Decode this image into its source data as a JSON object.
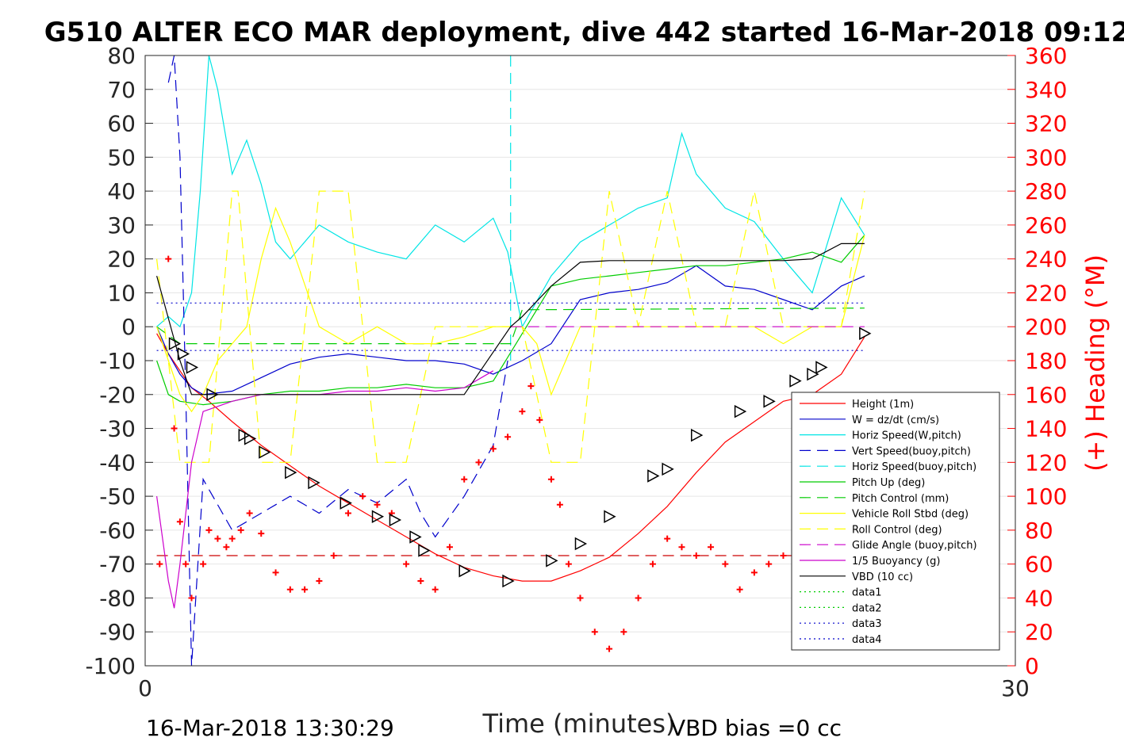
{
  "chart_data": {
    "type": "line",
    "title": "G510 ALTER ECO MAR deployment, dive 442 started 16-Mar-2018 09:12",
    "xlabel": "Time (minutes)",
    "ylabel_right": "(+) Heading (°M)",
    "xlim": [
      0,
      30
    ],
    "ylim": [
      -100,
      80
    ],
    "ylim_right": [
      0,
      360
    ],
    "x_ticks": [
      "0",
      "30"
    ],
    "y_ticks": [
      "80",
      "70",
      "60",
      "50",
      "40",
      "30",
      "20",
      "10",
      "0",
      "-10",
      "-20",
      "-30",
      "-40",
      "-50",
      "-60",
      "-70",
      "-80",
      "-90",
      "-100"
    ],
    "y_ticks_right": [
      "360",
      "340",
      "320",
      "300",
      "280",
      "260",
      "240",
      "220",
      "200",
      "180",
      "160",
      "140",
      "120",
      "100",
      "80",
      "60",
      "40",
      "20",
      "0"
    ],
    "grid": "horizontal",
    "legend_position": "bottom-right",
    "footer_left": "16-Mar-2018 13:30:29",
    "footer_right": "VBD bias =0 cc",
    "series": [
      {
        "name": "Height (1m)",
        "color": "#ff0000",
        "style": "solid",
        "x": [
          0.4,
          0.8,
          1.2,
          1.6,
          2.2,
          3,
          4,
          5,
          6,
          7,
          8,
          9,
          10,
          11,
          12,
          13,
          14,
          15,
          16,
          17,
          18,
          19,
          20,
          21,
          22,
          23,
          24,
          24.8
        ],
        "y": [
          -2,
          -8,
          -13,
          -18,
          -22,
          -28,
          -35,
          -41,
          -47,
          -52,
          -57,
          -62,
          -67,
          -71,
          -73.5,
          -75,
          -75,
          -72,
          -68,
          -61,
          -53,
          -43,
          -34,
          -28,
          -22,
          -20,
          -14,
          -3
        ]
      },
      {
        "name": "W = dz/dt (cm/s)",
        "color": "#0000cc",
        "style": "solid",
        "x": [
          0.4,
          0.8,
          1.2,
          1.6,
          2,
          3,
          4,
          5,
          6,
          7,
          8,
          9,
          10,
          11,
          12,
          13,
          14,
          15,
          16,
          17,
          18,
          19,
          20,
          21,
          22,
          23,
          24,
          24.8
        ],
        "y": [
          0,
          -8,
          -14,
          -18,
          -20,
          -19,
          -15,
          -11,
          -9,
          -8,
          -9,
          -10,
          -10,
          -11,
          -14,
          -10,
          -5,
          8,
          10,
          11,
          13,
          18,
          12,
          11,
          8,
          5,
          12,
          15
        ]
      },
      {
        "name": "Horiz Speed(W,pitch)",
        "color": "#00e5e5",
        "style": "solid",
        "x": [
          0.4,
          0.8,
          1.2,
          1.6,
          1.9,
          2.2,
          2.5,
          3,
          3.5,
          4,
          4.5,
          5,
          6,
          7,
          8,
          9,
          10,
          11,
          12,
          12.5,
          13,
          14,
          15,
          16,
          17,
          18,
          18.5,
          19,
          20,
          21,
          22,
          23,
          24,
          24.8
        ],
        "y": [
          0,
          3,
          0,
          10,
          40,
          80,
          70,
          45,
          55,
          42,
          25,
          20,
          30,
          25,
          22,
          20,
          30,
          25,
          32,
          22,
          0,
          15,
          25,
          30,
          35,
          38,
          57,
          45,
          35,
          31,
          20,
          10,
          38,
          27
        ]
      },
      {
        "name": "Vert Speed(buoy,pitch)",
        "color": "#0000cc",
        "style": "dashed",
        "x": [
          0.8,
          1,
          1.2,
          1.4,
          1.6,
          2,
          3,
          4,
          5,
          6,
          7,
          8,
          9,
          9.5,
          10,
          11,
          12,
          12.5
        ],
        "y": [
          72,
          80,
          50,
          -20,
          -100,
          -45,
          -60,
          -55,
          -50,
          -55,
          -48,
          -52,
          -45,
          -55,
          -62,
          -50,
          -35,
          -10
        ]
      },
      {
        "name": "Horiz Speed(buoy,pitch)",
        "color": "#00e5e5",
        "style": "dashed",
        "x": [
          12.6,
          12.6
        ],
        "y": [
          80,
          -10
        ]
      },
      {
        "name": "Pitch Up (deg)",
        "color": "#00cc00",
        "style": "solid",
        "x": [
          0.4,
          0.8,
          1.2,
          2,
          3,
          4,
          5,
          6,
          7,
          8,
          9,
          10,
          11,
          12,
          13,
          14,
          15,
          16,
          17,
          18,
          19,
          20,
          21,
          22,
          23,
          24,
          24.8
        ],
        "y": [
          -10,
          -20,
          -22,
          -23,
          -22,
          -20,
          -19,
          -19,
          -18,
          -18,
          -17,
          -18,
          -18,
          -16,
          -2,
          12,
          14,
          15,
          16,
          17,
          18,
          18,
          19,
          20,
          22,
          19,
          27
        ]
      },
      {
        "name": "Pitch Control (mm)",
        "color": "#00cc00",
        "style": "dashed",
        "x": [
          0.4,
          1.2,
          1.5,
          12.6,
          13,
          24.8
        ],
        "y": [
          0,
          -5,
          -5,
          -5,
          5,
          5.5
        ]
      },
      {
        "name": "Vehicle Roll Stbd (deg)",
        "color": "#ffff00",
        "style": "solid",
        "x": [
          0.4,
          0.8,
          1.2,
          1.6,
          2,
          2.5,
          3,
          3.5,
          4,
          4.5,
          5,
          6,
          7,
          8,
          9,
          10,
          11,
          12,
          13,
          13.5,
          14,
          15,
          16,
          17,
          18,
          19,
          20,
          21,
          22,
          23,
          24,
          24.8
        ],
        "y": [
          0,
          -10,
          -20,
          -25,
          -20,
          -10,
          -5,
          0,
          20,
          35,
          25,
          0,
          -5,
          0,
          -5,
          -5,
          -3,
          0,
          0,
          -5,
          -20,
          0,
          0,
          0,
          0,
          0,
          0,
          0,
          -5,
          0,
          0,
          27
        ]
      },
      {
        "name": "Roll Control (deg)",
        "color": "#ffff00",
        "style": "dashed",
        "x": [
          0.4,
          1.2,
          1.6,
          2.2,
          3,
          3.2,
          4,
          5,
          6,
          7,
          8,
          9,
          10,
          11,
          12,
          13,
          14,
          15,
          16,
          17,
          18,
          19,
          20,
          21,
          22,
          23,
          24,
          24.8
        ],
        "y": [
          20,
          -40,
          -40,
          -40,
          40,
          40,
          -40,
          -40,
          40,
          40,
          -40,
          -40,
          0,
          0,
          0,
          0,
          -40,
          -40,
          40,
          0,
          40,
          0,
          0,
          40,
          0,
          0,
          0,
          40
        ]
      },
      {
        "name": "Glide Angle (buoy,pitch)",
        "color": "#cc00cc",
        "style": "dashed",
        "x": [
          12.6,
          24.8
        ],
        "y": [
          0,
          0
        ]
      },
      {
        "name": "1/5 Buoyancy (g)",
        "color": "#cc00cc",
        "style": "solid",
        "x": [
          0.4,
          0.8,
          1,
          1.2,
          1.6,
          2,
          3,
          4,
          5,
          6,
          7,
          8,
          9,
          10,
          11,
          12
        ],
        "y": [
          -50,
          -75,
          -83,
          -70,
          -40,
          -25,
          -22,
          -20,
          -20,
          -20,
          -19,
          -19,
          -18,
          -19,
          -18,
          -13
        ]
      },
      {
        "name": "VBD (10 cc)",
        "color": "#000000",
        "style": "solid",
        "x": [
          0.4,
          1.2,
          1.6,
          11,
          12.6,
          13,
          14,
          15,
          16,
          22,
          23,
          24,
          24.8
        ],
        "y": [
          15,
          -10,
          -20,
          -20,
          0,
          3,
          12,
          19,
          19.5,
          19.5,
          20,
          24.5,
          24.5
        ]
      },
      {
        "name": "data1",
        "color": "#00cc00",
        "style": "dotted",
        "x": [],
        "y": []
      },
      {
        "name": "data2",
        "color": "#00cc00",
        "style": "dotted",
        "x": [],
        "y": []
      },
      {
        "name": "data3",
        "color": "#0000cc",
        "style": "dotted",
        "x": [
          0.4,
          24.8
        ],
        "y": [
          7,
          7
        ]
      },
      {
        "name": "data4",
        "color": "#0000cc",
        "style": "dotted",
        "x": [
          0.4,
          24.8
        ],
        "y": [
          -7,
          -7
        ]
      }
    ],
    "extra_lines": [
      {
        "color": "#cc0000",
        "style": "dashed",
        "x": [
          0.4,
          24.8
        ],
        "y": [
          -67.5,
          -67.5
        ]
      }
    ],
    "heading_points": {
      "color": "#ff0000",
      "marker": "+",
      "axis": "right",
      "x": [
        0.5,
        0.8,
        1,
        1.2,
        1.4,
        1.6,
        2,
        2.2,
        2.5,
        2.8,
        3,
        3.3,
        3.6,
        4,
        4.5,
        5,
        5.5,
        6,
        6.5,
        7,
        7.5,
        8,
        8.5,
        9,
        9.5,
        10,
        10.5,
        11,
        11.5,
        12,
        12.5,
        13,
        13.3,
        13.6,
        14,
        14.3,
        14.6,
        15,
        15.5,
        16,
        16.5,
        17,
        17.5,
        18,
        18.5,
        19,
        19.5,
        20,
        20.5,
        21,
        21.5,
        22,
        22.5,
        23,
        23.5,
        24,
        24.5
      ],
      "y": [
        60,
        240,
        140,
        85,
        60,
        40,
        60,
        80,
        75,
        70,
        75,
        80,
        90,
        78,
        55,
        45,
        45,
        50,
        65,
        90,
        100,
        95,
        90,
        60,
        50,
        45,
        70,
        110,
        120,
        128,
        135,
        150,
        165,
        145,
        110,
        95,
        60,
        40,
        20,
        10,
        20,
        40,
        60,
        75,
        70,
        65,
        70,
        60,
        45,
        55,
        60,
        65,
        95,
        80,
        85,
        90,
        110
      ]
    },
    "markers": {
      "shape": "triangle-right",
      "color": "#000000",
      "x": [
        1,
        1.3,
        1.6,
        2.3,
        3.4,
        3.6,
        4.1,
        5,
        5.8,
        6.9,
        8,
        8.6,
        9.3,
        9.6,
        11,
        12.5,
        14,
        15,
        16,
        17.5,
        18,
        19,
        20.5,
        21.5,
        22.4,
        23,
        23.3,
        24.8
      ],
      "y": [
        -5,
        -8,
        -12,
        -20,
        -32,
        -33,
        -37,
        -43,
        -46,
        -52,
        -56,
        -57,
        -62,
        -66,
        -72,
        -75,
        -69,
        -64,
        -56,
        -44,
        -42,
        -32,
        -25,
        -22,
        -16,
        -14,
        -12,
        -2
      ]
    }
  }
}
